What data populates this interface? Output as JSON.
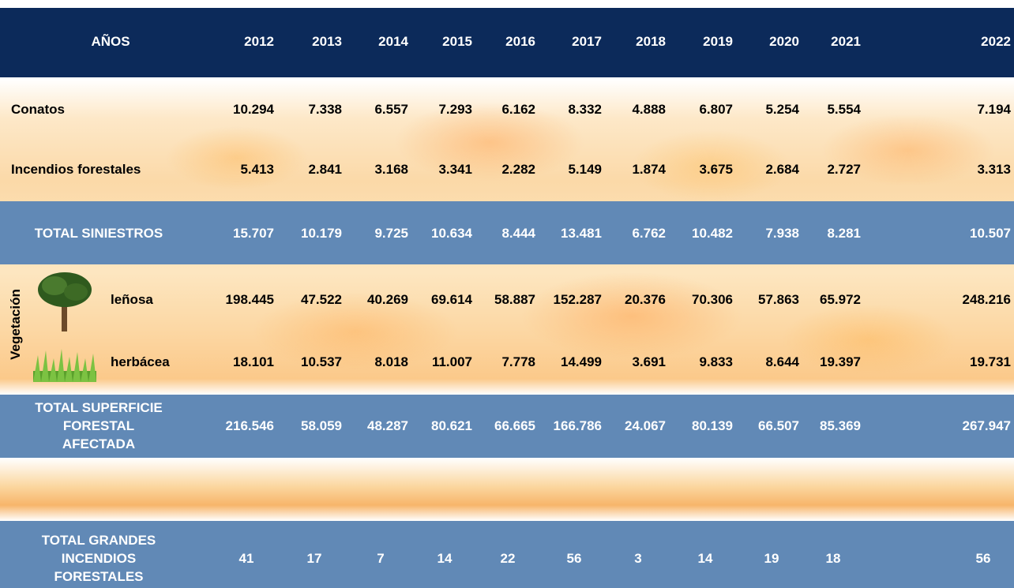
{
  "header": {
    "label": "AÑOS",
    "years": [
      "2012",
      "2013",
      "2014",
      "2015",
      "2016",
      "2017",
      "2018",
      "2019",
      "2020",
      "2021",
      "2022"
    ]
  },
  "vegetation_label": "Vegetación",
  "rows": [
    {
      "label": "Conatos",
      "values": [
        "10.294",
        "7.338",
        "6.557",
        "7.293",
        "6.162",
        "8.332",
        "4.888",
        "6.807",
        "5.254",
        "5.554",
        "7.194"
      ]
    },
    {
      "label": "Incendios forestales",
      "values": [
        "5.413",
        "2.841",
        "3.168",
        "3.341",
        "2.282",
        "5.149",
        "1.874",
        "3.675",
        "2.684",
        "2.727",
        "3.313"
      ]
    },
    {
      "label": "TOTAL SINIESTROS",
      "values": [
        "15.707",
        "10.179",
        "9.725",
        "10.634",
        "8.444",
        "13.481",
        "6.762",
        "10.482",
        "7.938",
        "8.281",
        "10.507"
      ]
    },
    {
      "label": "leñosa",
      "values": [
        "198.445",
        "47.522",
        "40.269",
        "69.614",
        "58.887",
        "152.287",
        "20.376",
        "70.306",
        "57.863",
        "65.972",
        "248.216"
      ]
    },
    {
      "label": "herbácea",
      "values": [
        "18.101",
        "10.537",
        "8.018",
        "11.007",
        "7.778",
        "14.499",
        "3.691",
        "9.833",
        "8.644",
        "19.397",
        "19.731"
      ]
    },
    {
      "label": [
        "TOTAL SUPERFICIE",
        "FORESTAL",
        "AFECTADA"
      ],
      "values": [
        "216.546",
        "58.059",
        "48.287",
        "80.621",
        "66.665",
        "166.786",
        "24.067",
        "80.139",
        "66.507",
        "85.369",
        "267.947"
      ]
    },
    {
      "label": [
        "TOTAL GRANDES",
        "INCENDIOS",
        "FORESTALES"
      ],
      "values": [
        "41",
        "17",
        "7",
        "14",
        "22",
        "56",
        "3",
        "14",
        "19",
        "18",
        "56"
      ]
    }
  ]
}
